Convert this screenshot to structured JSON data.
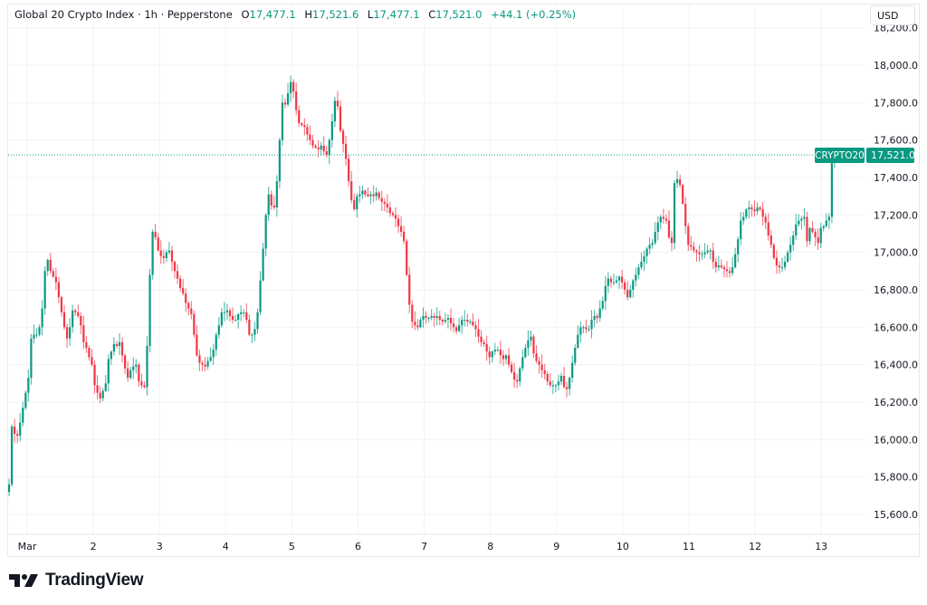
{
  "legend": {
    "title": "Global 20 Crypto Index · 1h · Pepperstone",
    "open_label": "O",
    "open": "17,477.1",
    "high_label": "H",
    "high": "17,521.6",
    "low_label": "L",
    "low": "17,477.1",
    "close_label": "C",
    "close": "17,521.0",
    "change": "+44.1 (+0.25%)"
  },
  "currency_button": "USD",
  "price_tag": {
    "symbol": "CRYPTO20",
    "price": "17,521.0"
  },
  "logo": {
    "text": "TradingView"
  },
  "colors": {
    "up": "#089981",
    "down": "#f23645",
    "grid": "#f0f3fa"
  },
  "chart_data": {
    "type": "candlestick",
    "interval": "1h",
    "ylim": [
      15500,
      18250
    ],
    "grid": true,
    "y_ticks": [
      "15,600.0",
      "15,800.0",
      "16,000.0",
      "16,200.0",
      "16,400.0",
      "16,600.0",
      "16,800.0",
      "17,000.0",
      "17,200.0",
      "17,400.0",
      "17,600.0",
      "17,800.0",
      "18,000.0",
      "18,200.0"
    ],
    "y_tick_values": [
      15600,
      15800,
      16000,
      16200,
      16400,
      16600,
      16800,
      17000,
      17200,
      17400,
      17600,
      17800,
      18000,
      18200
    ],
    "x_ticks": [
      "Mar",
      "2",
      "3",
      "4",
      "5",
      "6",
      "7",
      "8",
      "9",
      "10",
      "11",
      "12",
      "13"
    ],
    "first_open": 15720,
    "close": [
      15760,
      16070,
      16030,
      16020,
      16090,
      16170,
      16250,
      16330,
      16540,
      16560,
      16560,
      16600,
      16700,
      16900,
      16960,
      16900,
      16870,
      16840,
      16760,
      16680,
      16600,
      16540,
      16600,
      16690,
      16680,
      16660,
      16610,
      16520,
      16490,
      16440,
      16400,
      16290,
      16250,
      16220,
      16260,
      16300,
      16430,
      16470,
      16510,
      16500,
      16520,
      16450,
      16380,
      16330,
      16370,
      16390,
      16400,
      16310,
      16290,
      16280,
      16500,
      16880,
      17110,
      17080,
      17010,
      16980,
      16970,
      17000,
      17010,
      16950,
      16900,
      16860,
      16810,
      16780,
      16730,
      16700,
      16670,
      16560,
      16450,
      16410,
      16400,
      16390,
      16420,
      16440,
      16480,
      16560,
      16610,
      16680,
      16680,
      16690,
      16660,
      16640,
      16640,
      16670,
      16680,
      16680,
      16640,
      16560,
      16560,
      16590,
      16680,
      16850,
      17020,
      17200,
      17310,
      17250,
      17240,
      17380,
      17600,
      17800,
      17790,
      17850,
      17910,
      17860,
      17760,
      17690,
      17680,
      17670,
      17630,
      17600,
      17570,
      17560,
      17550,
      17570,
      17540,
      17520,
      17600,
      17700,
      17810,
      17780,
      17650,
      17580,
      17500,
      17380,
      17280,
      17230,
      17300,
      17310,
      17330,
      17310,
      17300,
      17310,
      17300,
      17320,
      17290,
      17270,
      17260,
      17240,
      17210,
      17200,
      17180,
      17140,
      17110,
      17060,
      16880,
      16720,
      16630,
      16610,
      16600,
      16640,
      16660,
      16650,
      16650,
      16660,
      16650,
      16660,
      16640,
      16630,
      16640,
      16650,
      16620,
      16600,
      16580,
      16610,
      16640,
      16640,
      16630,
      16630,
      16610,
      16590,
      16550,
      16520,
      16510,
      16470,
      16440,
      16470,
      16480,
      16480,
      16450,
      16430,
      16450,
      16400,
      16360,
      16320,
      16310,
      16380,
      16440,
      16490,
      16530,
      16550,
      16460,
      16420,
      16400,
      16370,
      16350,
      16310,
      16290,
      16290,
      16290,
      16310,
      16340,
      16280,
      16270,
      16330,
      16410,
      16490,
      16560,
      16600,
      16600,
      16590,
      16590,
      16640,
      16660,
      16650,
      16700,
      16740,
      16820,
      16860,
      16840,
      16840,
      16850,
      16870,
      16840,
      16800,
      16760,
      16800,
      16850,
      16880,
      16920,
      16950,
      16980,
      17020,
      17040,
      17050,
      17110,
      17160,
      17190,
      17180,
      17170,
      17080,
      17050,
      17370,
      17390,
      17360,
      17260,
      17140,
      17040,
      17030,
      17010,
      17000,
      16990,
      16990,
      17000,
      17010,
      17010,
      16950,
      16920,
      16930,
      16920,
      16910,
      16900,
      16890,
      16920,
      16990,
      17070,
      17170,
      17190,
      17230,
      17240,
      17230,
      17220,
      17240,
      17230,
      17190,
      17160,
      17090,
      17040,
      16970,
      16930,
      16920,
      16920,
      16950,
      17000,
      17040,
      17090,
      17150,
      17170,
      17180,
      17190,
      17060,
      17130,
      17110,
      17080,
      17050,
      17130,
      17140,
      17170,
      17190,
      17477,
      17521
    ],
    "last_price": 17521.0
  }
}
